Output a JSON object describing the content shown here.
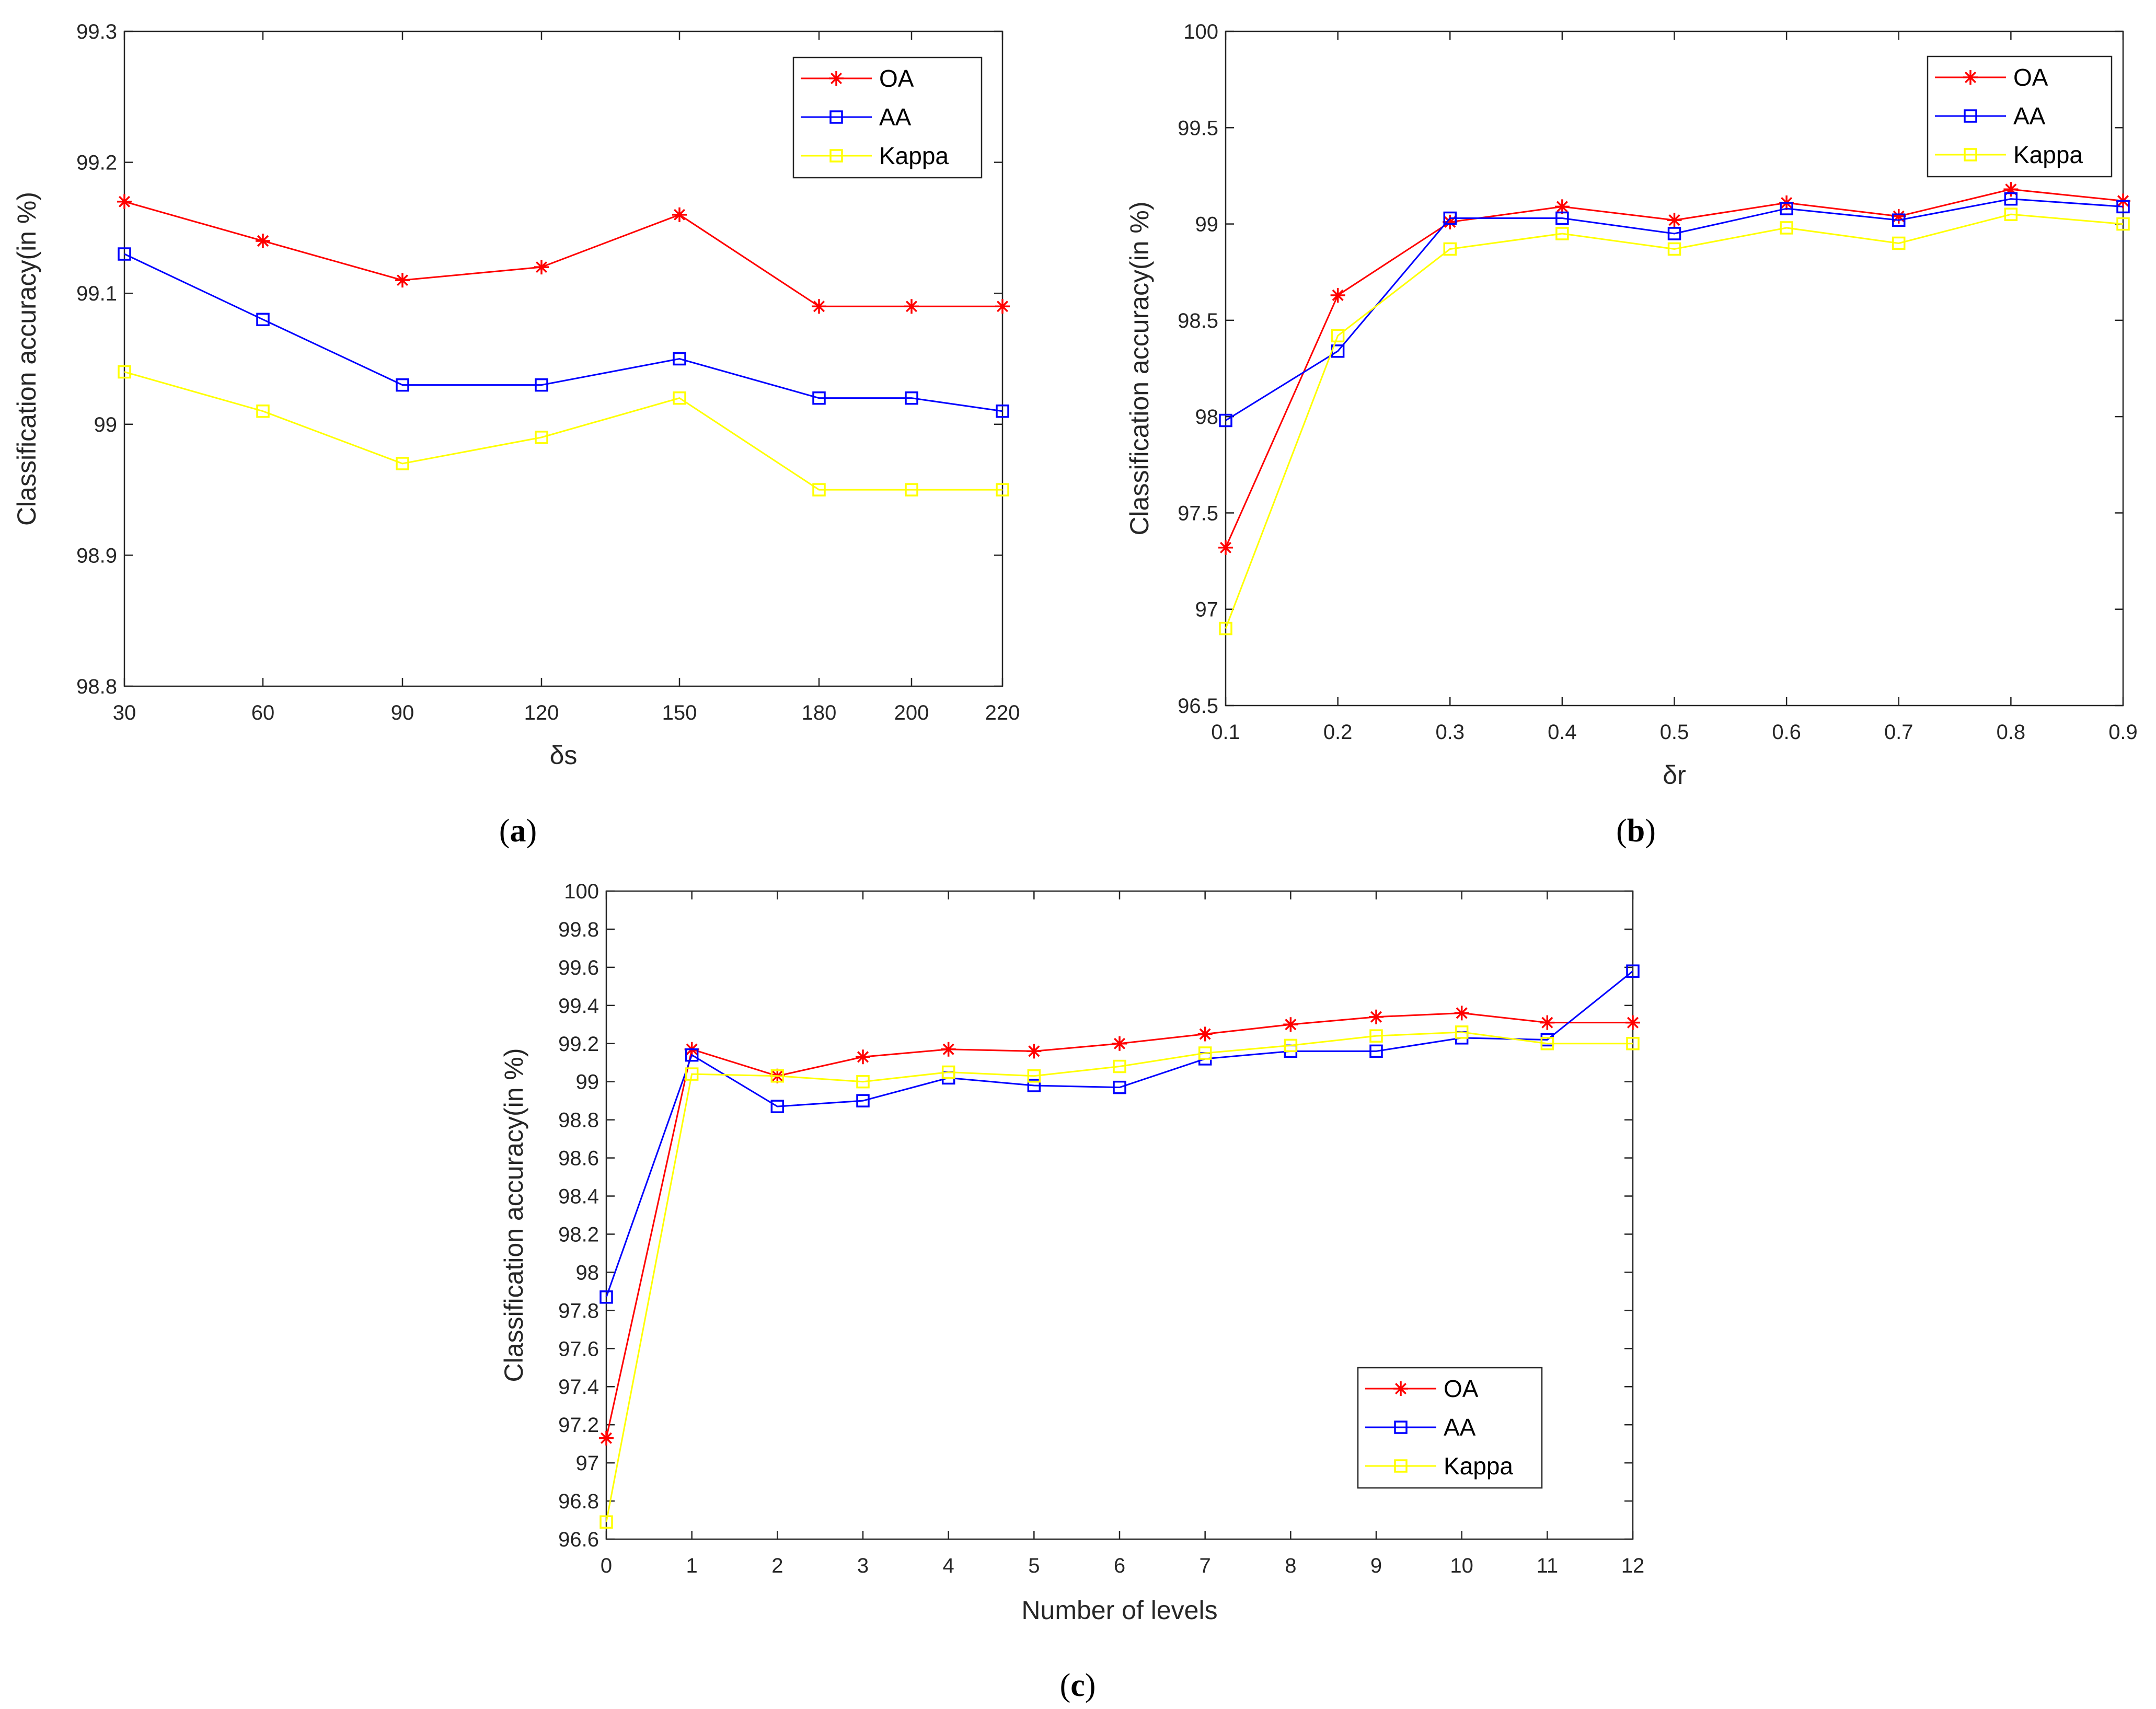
{
  "chart_data": [
    {
      "type": "line",
      "panel_label": "a",
      "title": "",
      "xlabel": "δs",
      "ylabel": "Classification accuracy(in %)",
      "categories": [
        "30",
        "60",
        "90",
        "120",
        "150",
        "180",
        "200",
        "220"
      ],
      "ylim": [
        98.8,
        99.3
      ],
      "yticks": [
        "98.8",
        "98.9",
        "99",
        "99.1",
        "99.2",
        "99.3"
      ],
      "ytick_values": [
        98.8,
        98.9,
        99.0,
        99.1,
        99.2,
        99.3
      ],
      "legend_position": "top-right",
      "grid": false,
      "series": [
        {
          "name": "OA",
          "color": "#ff0000",
          "marker": "star",
          "values": [
            99.17,
            99.14,
            99.11,
            99.12,
            99.16,
            99.09,
            99.09,
            99.09
          ]
        },
        {
          "name": "AA",
          "color": "#0000ff",
          "marker": "square",
          "values": [
            99.13,
            99.08,
            99.03,
            99.03,
            99.05,
            99.02,
            99.02,
            99.01
          ]
        },
        {
          "name": "Kappa",
          "color": "#ffff00",
          "marker": "square",
          "values": [
            99.04,
            99.01,
            98.97,
            98.99,
            99.02,
            98.95,
            98.95,
            98.95
          ]
        }
      ]
    },
    {
      "type": "line",
      "panel_label": "b",
      "title": "",
      "xlabel": "δr",
      "ylabel": "Classification accuracy(in %)",
      "categories": [
        "0.1",
        "0.2",
        "0.3",
        "0.4",
        "0.5",
        "0.6",
        "0.7",
        "0.8",
        "0.9"
      ],
      "ylim": [
        96.5,
        100
      ],
      "yticks": [
        "96.5",
        "97",
        "97.5",
        "98",
        "98.5",
        "99",
        "99.5",
        "100"
      ],
      "ytick_values": [
        96.5,
        97.0,
        97.5,
        98.0,
        98.5,
        99.0,
        99.5,
        100.0
      ],
      "legend_position": "top-right",
      "grid": false,
      "series": [
        {
          "name": "OA",
          "color": "#ff0000",
          "marker": "star",
          "values": [
            97.32,
            98.63,
            99.01,
            99.09,
            99.02,
            99.11,
            99.04,
            99.18,
            99.12
          ]
        },
        {
          "name": "AA",
          "color": "#0000ff",
          "marker": "square",
          "values": [
            97.98,
            98.34,
            99.03,
            99.03,
            98.95,
            99.08,
            99.02,
            99.13,
            99.09
          ]
        },
        {
          "name": "Kappa",
          "color": "#ffff00",
          "marker": "square",
          "values": [
            96.9,
            98.42,
            98.87,
            98.95,
            98.87,
            98.98,
            98.9,
            99.05,
            99.0
          ]
        }
      ]
    },
    {
      "type": "line",
      "panel_label": "c",
      "title": "",
      "xlabel": "Number of levels",
      "ylabel": "Classification accuracy(in %)",
      "categories": [
        "0",
        "1",
        "2",
        "3",
        "4",
        "5",
        "6",
        "7",
        "8",
        "9",
        "10",
        "11",
        "12"
      ],
      "ylim": [
        96.6,
        100
      ],
      "yticks": [
        "96.6",
        "96.8",
        "97",
        "97.2",
        "97.4",
        "97.6",
        "97.8",
        "98",
        "98.2",
        "98.4",
        "98.6",
        "98.8",
        "99",
        "99.2",
        "99.4",
        "99.6",
        "99.8",
        "100"
      ],
      "ytick_values": [
        96.6,
        96.8,
        97.0,
        97.2,
        97.4,
        97.6,
        97.8,
        98.0,
        98.2,
        98.4,
        98.6,
        98.8,
        99.0,
        99.2,
        99.4,
        99.6,
        99.8,
        100.0
      ],
      "legend_position": "bottom-right",
      "grid": false,
      "series": [
        {
          "name": "OA",
          "color": "#ff0000",
          "marker": "star",
          "values": [
            97.13,
            99.17,
            99.03,
            99.13,
            99.17,
            99.16,
            99.2,
            99.25,
            99.3,
            99.34,
            99.36,
            99.31,
            99.31
          ]
        },
        {
          "name": "AA",
          "color": "#0000ff",
          "marker": "square",
          "values": [
            97.87,
            99.14,
            98.87,
            98.9,
            99.02,
            98.98,
            98.97,
            99.12,
            99.16,
            99.16,
            99.23,
            99.22,
            99.58
          ]
        },
        {
          "name": "Kappa",
          "color": "#ffff00",
          "marker": "square",
          "values": [
            96.69,
            99.04,
            99.03,
            99.0,
            99.05,
            99.03,
            99.08,
            99.15,
            99.19,
            99.24,
            99.26,
            99.2,
            99.2
          ]
        }
      ]
    }
  ]
}
